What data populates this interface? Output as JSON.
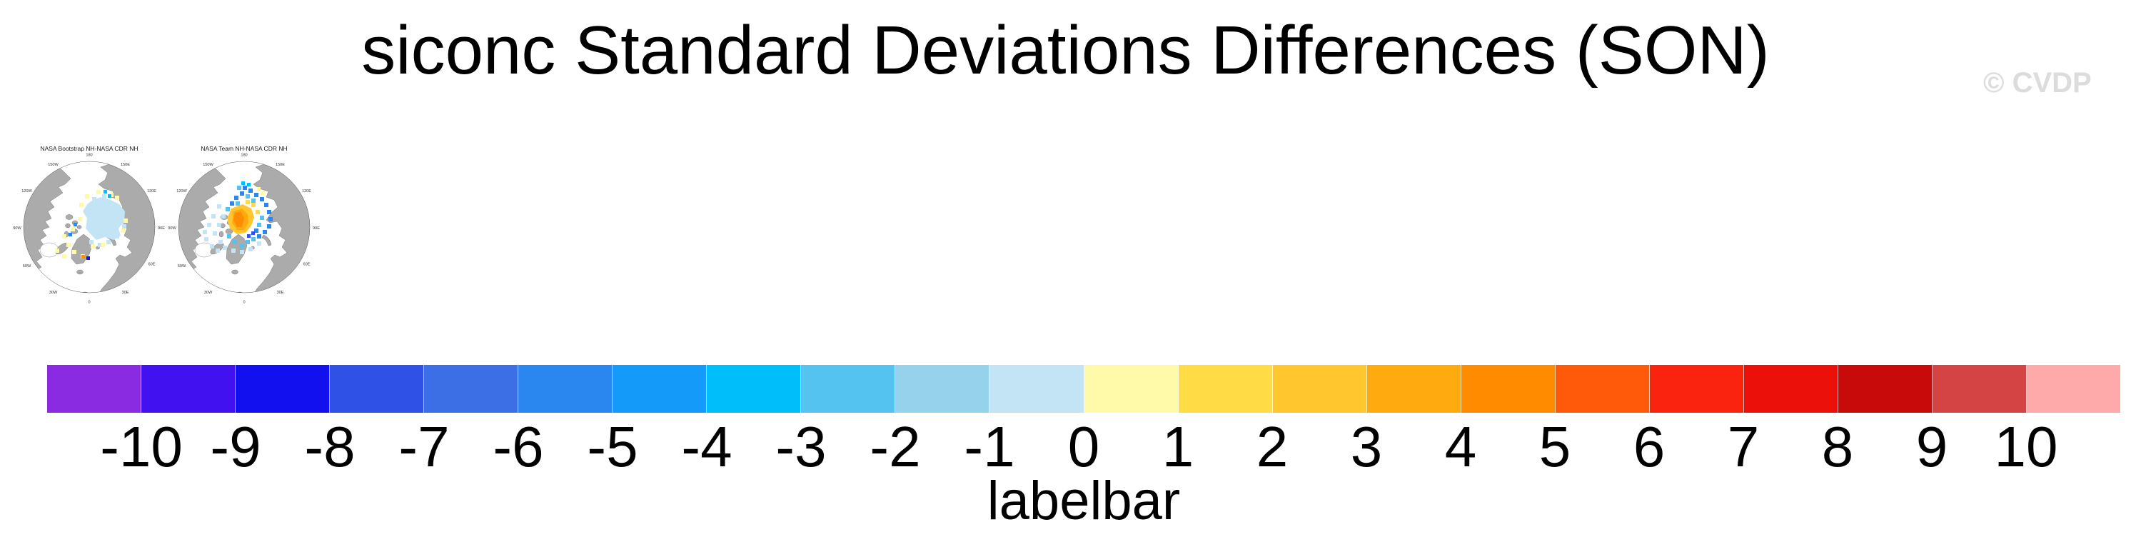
{
  "header": {
    "title": "siconc Standard Deviations Differences (SON)",
    "watermark": "© CVDP"
  },
  "panels": [
    {
      "title": "NASA Bootstrap NH-NASA CDR NH"
    },
    {
      "title": "NASA Team NH-NASA CDR NH"
    }
  ],
  "compass_labels": [
    "180",
    "150E",
    "120E",
    "90E",
    "60E",
    "30E",
    "0",
    "30W",
    "60W",
    "90W",
    "120W",
    "150W"
  ],
  "colorbar": {
    "axis_label": "labelbar",
    "ticks": [
      "-10",
      "-9",
      "-8",
      "-7",
      "-6",
      "-5",
      "-4",
      "-3",
      "-2",
      "-1",
      "0",
      "1",
      "2",
      "3",
      "4",
      "5",
      "6",
      "7",
      "8",
      "9",
      "10"
    ],
    "colors": [
      "#8A2BE2",
      "#4111F0",
      "#1310F0",
      "#3051E6",
      "#3C6FE6",
      "#2A87F0",
      "#149BFA",
      "#00BEFA",
      "#55C3F0",
      "#96D2EB",
      "#C3E4F5",
      "#FFFAAA",
      "#FFDC46",
      "#FFC62E",
      "#FFAA0F",
      "#FF8C00",
      "#FF5A0A",
      "#FA230F",
      "#EB100A",
      "#C80A0A",
      "#D44444",
      "#FFAAAA"
    ]
  },
  "map_colors": {
    "land": "#ABABAB",
    "coast": "#6E6E6E"
  },
  "chart_data": {
    "type": "heatmap",
    "title": "siconc Standard Deviations Differences (SON)",
    "variable": "siconc",
    "season": "SON",
    "watermark": "© CVDP",
    "panels": [
      {
        "title": "NASA Bootstrap NH-NASA CDR NH",
        "projection": "north polar stereographic",
        "summary": "Central Arctic basin covered by pale blue cells (about -1 to 0) with scattered pale yellow cells (about 0 to 1) along the Siberian coast, Canadian Archipelago, Hudson Bay and Baffin Bay; isolated dark blue and orange cells south of Greenland; gray land, white ocean"
      },
      {
        "title": "NASA Team NH-NASA CDR NH",
        "projection": "north polar stereographic",
        "summary": "Orange core (about 3 to 6) over the central Arctic north of Greenland with a yellow fringe, surrounded by medium blue cells (about -5 to -2) and scattered pale blue cells toward the coasts; isolated dark blue cells near Fram Strait and pale yellow cells on the Siberian coast"
      }
    ],
    "colorbar": {
      "label": "labelbar",
      "tick_values": [
        -10,
        -9,
        -8,
        -7,
        -6,
        -5,
        -4,
        -3,
        -2,
        -1,
        0,
        1,
        2,
        3,
        4,
        5,
        6,
        7,
        8,
        9,
        10
      ],
      "n_segments": 22,
      "segment_colors": [
        "#8A2BE2",
        "#4111F0",
        "#1310F0",
        "#3051E6",
        "#3C6FE6",
        "#2A87F0",
        "#149BFA",
        "#00BEFA",
        "#55C3F0",
        "#96D2EB",
        "#C3E4F5",
        "#FFFAAA",
        "#FFDC46",
        "#FFC62E",
        "#FFAA0F",
        "#FF8C00",
        "#FF5A0A",
        "#FA230F",
        "#EB100A",
        "#C80A0A",
        "#D44444",
        "#FFAAAA"
      ],
      "orientation": "horizontal",
      "position": "bottom"
    }
  }
}
